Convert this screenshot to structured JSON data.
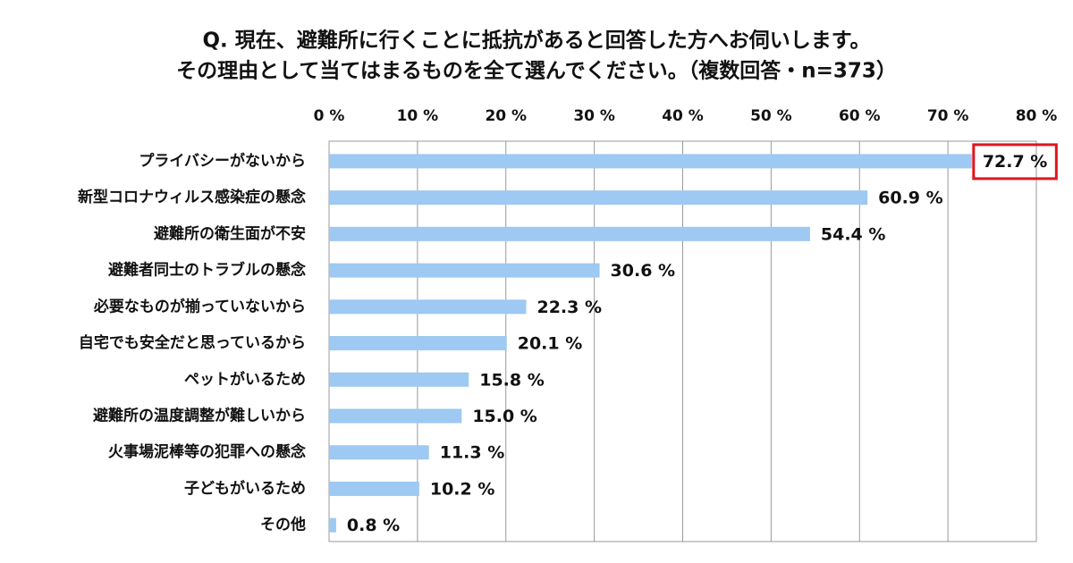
{
  "chart_data": {
    "type": "bar",
    "orientation": "horizontal",
    "title": [
      "Q. 現在、避難所に行くことに抵抗があると回答した方へお伺いします。",
      "その理由として当てはまるものを全て選んでください。（複数回答・n=373）"
    ],
    "categories": [
      "プライバシーがないから",
      "新型コロナウィルス感染症の懸念",
      "避難所の衛生面が不安",
      "避難者同士のトラブルの懸念",
      "必要なものが揃っていないから",
      "自宅でも安全だと思っているから",
      "ペットがいるため",
      "避難所の温度調整が難しいから",
      "火事場泥棒等の犯罪への懸念",
      "子どもがいるため",
      "その他"
    ],
    "values": [
      72.7,
      60.9,
      54.4,
      30.6,
      22.3,
      20.1,
      15.8,
      15.0,
      11.3,
      10.2,
      0.8
    ],
    "value_labels": [
      "72.7 %",
      "60.9 %",
      "54.4 %",
      "30.6 %",
      "22.3 %",
      "20.1 %",
      "15.8 %",
      "15.0 %",
      "11.3 %",
      "10.2 %",
      "0.8 %"
    ],
    "color": "#9dc9f2",
    "xlim": [
      0,
      80
    ],
    "xticks": [
      {
        "value": 0,
        "label": "0 %"
      },
      {
        "value": 10,
        "label": "10 %"
      },
      {
        "value": 20,
        "label": "20 %"
      },
      {
        "value": 30,
        "label": "30 %"
      },
      {
        "value": 40,
        "label": "40 %"
      },
      {
        "value": 50,
        "label": "50 %"
      },
      {
        "value": 60,
        "label": "60 %"
      },
      {
        "value": 70,
        "label": "70 %"
      },
      {
        "value": 80,
        "label": "80 %"
      }
    ],
    "grid": true,
    "highlight": {
      "index": 0,
      "color": "#e0161e"
    }
  }
}
